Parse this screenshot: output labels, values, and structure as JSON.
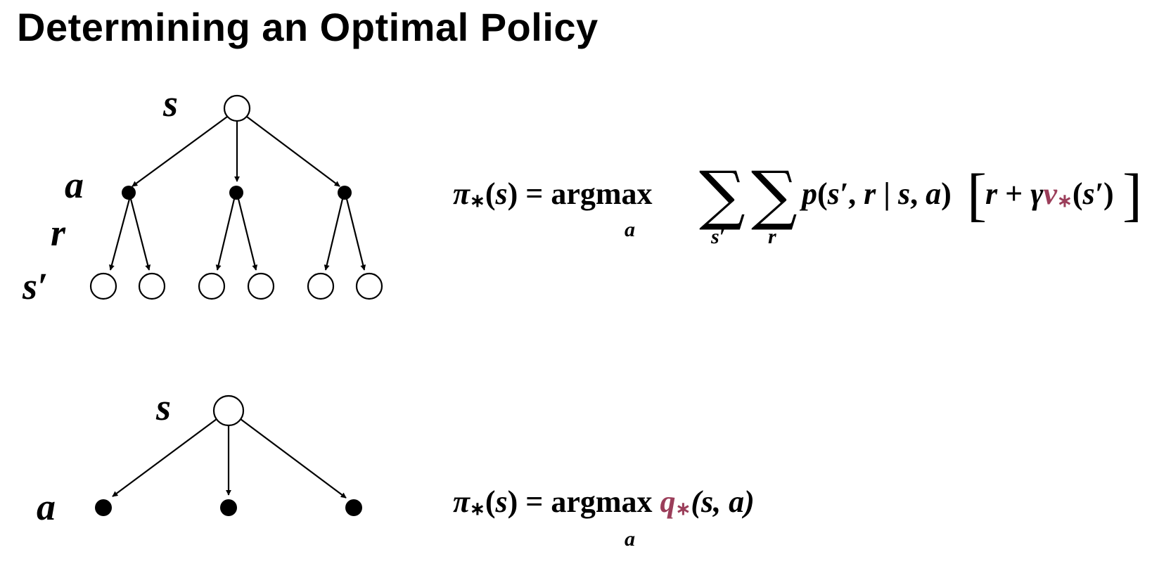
{
  "title": "Determining an Optimal Policy",
  "diagram_top": {
    "label_state": "s",
    "label_action": "a",
    "label_reward": "r",
    "label_next_state": "s′"
  },
  "diagram_bottom": {
    "label_state": "s",
    "label_action": "a"
  },
  "equation_top": {
    "pi": "π",
    "star": "∗",
    "arg_open": "(",
    "arg_var": "s",
    "arg_close": ")",
    "equals": " = ",
    "argmax": "argmax",
    "argmax_sub": "a",
    "sum_symbol": "∑",
    "sum1_sub": "s′",
    "sum2_sub": "r",
    "p": "p",
    "p_args_open": "(",
    "p_s_prime": "s′",
    "p_comma": ", ",
    "p_r": "r",
    "p_bar": " | ",
    "p_s": "s",
    "p_comma2": ", ",
    "p_a": "a",
    "p_args_close": ")",
    "bracket_open": "[",
    "r": "r",
    "plus": " + ",
    "gamma": "γ",
    "v": "v",
    "v_star": "∗",
    "v_args_open": "(",
    "v_s_prime": "s′",
    "v_args_close": ")",
    "bracket_close": "]"
  },
  "equation_bottom": {
    "pi": "π",
    "star": "∗",
    "arg_open": "(",
    "arg_var": "s",
    "arg_close": ")",
    "equals": " = ",
    "argmax": "argmax",
    "argmax_sub": "a",
    "q": "q",
    "q_star": "∗",
    "q_args": "(s, a)"
  },
  "colors": {
    "accent": "#9b3e5a",
    "text": "#000000",
    "background": "#ffffff"
  }
}
